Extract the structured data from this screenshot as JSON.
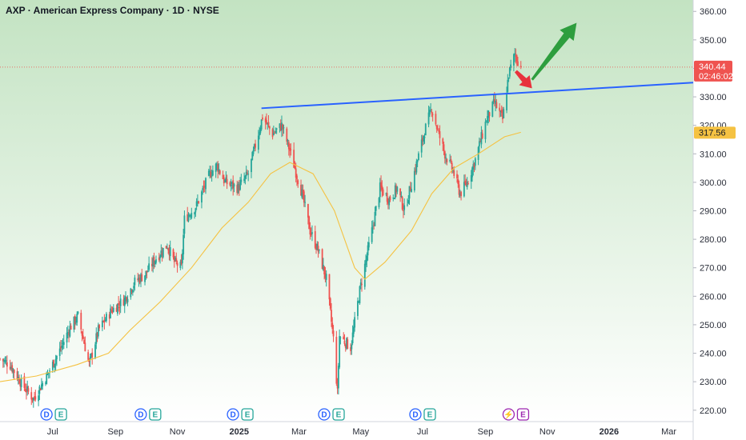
{
  "header": {
    "title": "AXP · American Express Company · 1D · NYSE"
  },
  "colors": {
    "bull": "#26a69a",
    "bear": "#ef5350",
    "ma": "#f5c242",
    "trendline": "#2962ff",
    "arrow_up": "#2e9e3e",
    "arrow_down": "#e8323c",
    "price_tag": "#ef5350",
    "ma_tag": "#f5c242",
    "bg_top": "#c3e3c2",
    "bg_bottom": "#ffffff",
    "event_dividend": "#2962ff",
    "event_earnings": "#26a69a",
    "event_split": "#9c27b0"
  },
  "price_tags": {
    "last_price": "340.44",
    "countdown": "02:46:02",
    "ma_value": "317.56"
  },
  "events": [
    {
      "date": "2024-07-02",
      "labels": [
        "D",
        "E"
      ]
    },
    {
      "date": "2024-10-03",
      "labels": [
        "D",
        "E"
      ]
    },
    {
      "date": "2025-01-02",
      "labels": [
        "D",
        "E"
      ]
    },
    {
      "date": "2025-04-02",
      "labels": [
        "D",
        "E"
      ]
    },
    {
      "date": "2025-07-01",
      "labels": [
        "D",
        "E"
      ]
    },
    {
      "date": "2025-10-01",
      "labels": [
        "⚡",
        "E"
      ],
      "upcoming": true
    }
  ],
  "chart_data": {
    "type": "candlestick",
    "title": "AXP · American Express Company · 1D · NYSE",
    "y_ticks": [
      "220.00",
      "230.00",
      "240.00",
      "250.00",
      "260.00",
      "270.00",
      "280.00",
      "290.00",
      "300.00",
      "310.00",
      "320.00",
      "330.00",
      "340.00",
      "350.00",
      "360.00"
    ],
    "ylim": [
      216,
      364
    ],
    "x_range": [
      "2024-05-10",
      "2026-03-25"
    ],
    "x_ticks": [
      {
        "label": "Jul",
        "date": "2024-07-01"
      },
      {
        "label": "Sep",
        "date": "2024-09-01"
      },
      {
        "label": "Nov",
        "date": "2024-11-01"
      },
      {
        "label": "2025",
        "date": "2025-01-01",
        "bold": true
      },
      {
        "label": "Mar",
        "date": "2025-03-01"
      },
      {
        "label": "May",
        "date": "2025-05-01"
      },
      {
        "label": "Jul",
        "date": "2025-07-01"
      },
      {
        "label": "Sep",
        "date": "2025-09-01"
      },
      {
        "label": "Nov",
        "date": "2025-11-01"
      },
      {
        "label": "2026",
        "date": "2026-01-01",
        "bold": true
      },
      {
        "label": "Mar",
        "date": "2026-03-01"
      }
    ],
    "price_path": [
      [
        "2024-05-10",
        238
      ],
      [
        "2024-05-20",
        236
      ],
      [
        "2024-06-01",
        229
      ],
      [
        "2024-06-12",
        224
      ],
      [
        "2024-06-25",
        232
      ],
      [
        "2024-07-08",
        241
      ],
      [
        "2024-07-18",
        249
      ],
      [
        "2024-07-26",
        253
      ],
      [
        "2024-08-06",
        236
      ],
      [
        "2024-08-15",
        248
      ],
      [
        "2024-08-28",
        255
      ],
      [
        "2024-09-10",
        259
      ],
      [
        "2024-09-20",
        265
      ],
      [
        "2024-10-01",
        268
      ],
      [
        "2024-10-10",
        273
      ],
      [
        "2024-10-22",
        278
      ],
      [
        "2024-10-29",
        272
      ],
      [
        "2024-11-05",
        270
      ],
      [
        "2024-11-08",
        287
      ],
      [
        "2024-11-20",
        292
      ],
      [
        "2024-12-03",
        303
      ],
      [
        "2024-12-10",
        306
      ],
      [
        "2024-12-18",
        300
      ],
      [
        "2024-12-31",
        298
      ],
      [
        "2025-01-10",
        303
      ],
      [
        "2025-01-17",
        313
      ],
      [
        "2025-01-24",
        323
      ],
      [
        "2025-02-03",
        317
      ],
      [
        "2025-02-12",
        320
      ],
      [
        "2025-02-21",
        310
      ],
      [
        "2025-03-04",
        296
      ],
      [
        "2025-03-12",
        283
      ],
      [
        "2025-03-20",
        276
      ],
      [
        "2025-03-28",
        266
      ],
      [
        "2025-04-04",
        245
      ],
      [
        "2025-04-08",
        226
      ],
      [
        "2025-04-10",
        246
      ],
      [
        "2025-04-21",
        242
      ],
      [
        "2025-04-30",
        262
      ],
      [
        "2025-05-12",
        283
      ],
      [
        "2025-05-20",
        298
      ],
      [
        "2025-05-29",
        294
      ],
      [
        "2025-06-06",
        298
      ],
      [
        "2025-06-13",
        290
      ],
      [
        "2025-06-24",
        305
      ],
      [
        "2025-07-03",
        318
      ],
      [
        "2025-07-10",
        326
      ],
      [
        "2025-07-16",
        318
      ],
      [
        "2025-07-23",
        310
      ],
      [
        "2025-07-31",
        304
      ],
      [
        "2025-08-07",
        296
      ],
      [
        "2025-08-14",
        300
      ],
      [
        "2025-08-22",
        308
      ],
      [
        "2025-09-02",
        322
      ],
      [
        "2025-09-10",
        328
      ],
      [
        "2025-09-18",
        322
      ],
      [
        "2025-09-24",
        338
      ],
      [
        "2025-09-30",
        345
      ],
      [
        "2025-10-06",
        340.44
      ]
    ],
    "ma_path": [
      [
        "2024-05-10",
        230
      ],
      [
        "2024-06-15",
        232
      ],
      [
        "2024-07-25",
        236
      ],
      [
        "2024-08-25",
        240
      ],
      [
        "2024-09-15",
        248
      ],
      [
        "2024-10-15",
        258
      ],
      [
        "2024-11-15",
        270
      ],
      [
        "2024-12-15",
        284
      ],
      [
        "2025-01-10",
        293
      ],
      [
        "2025-02-01",
        303
      ],
      [
        "2025-02-20",
        307
      ],
      [
        "2025-03-15",
        303
      ],
      [
        "2025-04-05",
        290
      ],
      [
        "2025-04-25",
        270
      ],
      [
        "2025-05-05",
        266
      ],
      [
        "2025-05-25",
        272
      ],
      [
        "2025-06-20",
        283
      ],
      [
        "2025-07-10",
        296
      ],
      [
        "2025-08-01",
        305
      ],
      [
        "2025-08-25",
        310
      ],
      [
        "2025-09-20",
        316
      ],
      [
        "2025-10-06",
        317.56
      ]
    ],
    "trendline": {
      "start": [
        "2025-01-23",
        326
      ],
      "end": [
        "2026-03-25",
        335
      ]
    },
    "annotations": [
      {
        "type": "arrow",
        "direction": "down",
        "from": [
          "2025-10-01",
          339
        ],
        "to": [
          "2025-10-17",
          333
        ]
      },
      {
        "type": "arrow",
        "direction": "up",
        "from": [
          "2025-10-17",
          336
        ],
        "to": [
          "2025-11-30",
          356
        ]
      }
    ]
  }
}
